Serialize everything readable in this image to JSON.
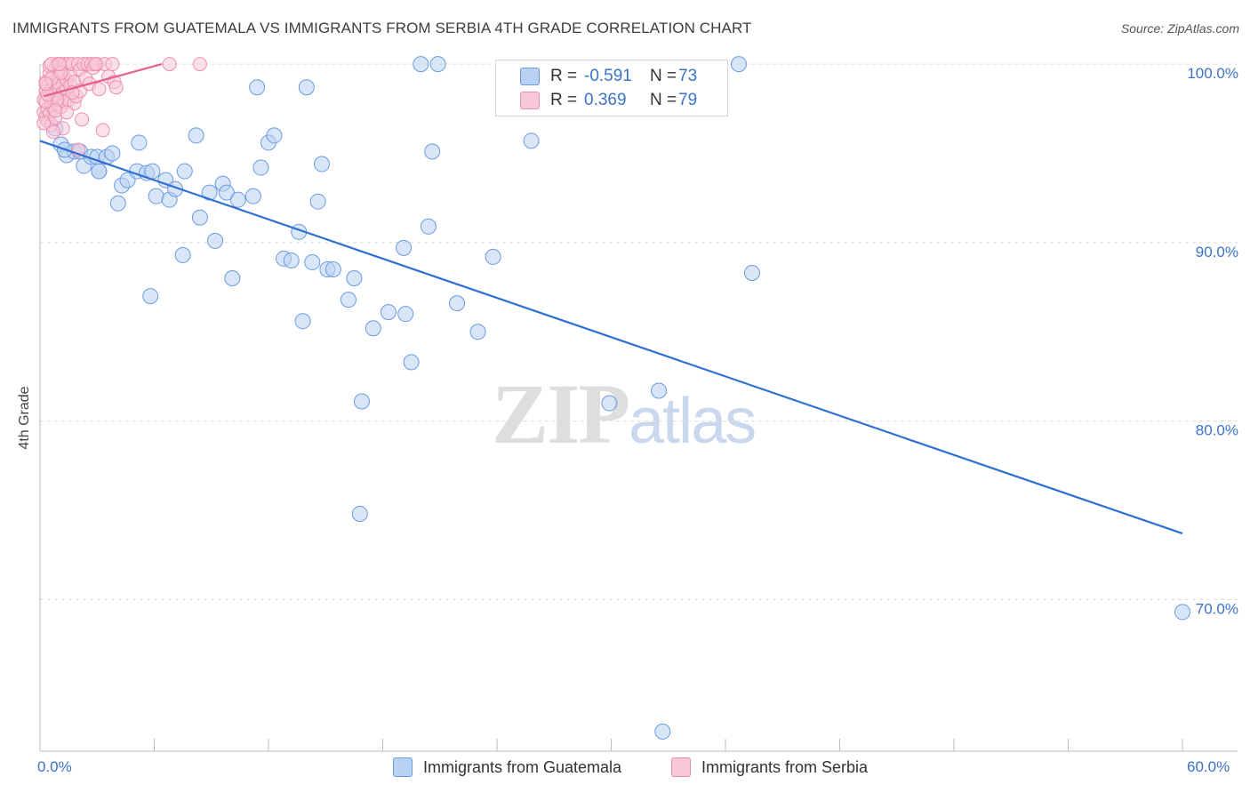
{
  "header": {
    "title": "IMMIGRANTS FROM GUATEMALA VS IMMIGRANTS FROM SERBIA 4TH GRADE CORRELATION CHART",
    "source": "Source: ZipAtlas.com"
  },
  "watermark": {
    "zip": "ZIP",
    "atlas": "atlas"
  },
  "legend_stats": {
    "r_label": "R =",
    "n_label": "N =",
    "guatemala": {
      "r": "-0.591",
      "n": "73"
    },
    "serbia": {
      "r": "0.369",
      "n": "79"
    }
  },
  "chart_data": {
    "type": "scatter",
    "title": "IMMIGRANTS FROM GUATEMALA VS IMMIGRANTS FROM SERBIA 4TH GRADE CORRELATION CHART",
    "xlabel": "",
    "ylabel": "4th Grade",
    "xlim": [
      0,
      60
    ],
    "ylim": [
      61.5,
      101.5
    ],
    "x_tick_labels": [
      "0.0%",
      "60.0%"
    ],
    "y_ticks": [
      70,
      80,
      90,
      100
    ],
    "y_tick_labels": [
      "70.0%",
      "80.0%",
      "90.0%",
      "100.0%"
    ],
    "grid": true,
    "legend": "bottom-center",
    "series": [
      {
        "name": "Immigrants from Guatemala",
        "color": "#6a9be0",
        "fill": "#b9d1f3",
        "trend": {
          "x": [
            0.0,
            60.0
          ],
          "y": [
            95.7,
            73.7
          ],
          "color": "#2f6fd2"
        },
        "points": [
          [
            0.8,
            96.4
          ],
          [
            1.1,
            95.5
          ],
          [
            1.4,
            94.9
          ],
          [
            1.8,
            95.1
          ],
          [
            2.1,
            95.1
          ],
          [
            2.3,
            94.3
          ],
          [
            2.7,
            94.8
          ],
          [
            3.0,
            94.8
          ],
          [
            3.1,
            94.0
          ],
          [
            3.5,
            94.8
          ],
          [
            3.8,
            95.0
          ],
          [
            4.1,
            92.2
          ],
          [
            4.3,
            93.2
          ],
          [
            4.6,
            93.5
          ],
          [
            5.1,
            94.0
          ],
          [
            5.2,
            95.6
          ],
          [
            5.6,
            93.9
          ],
          [
            5.9,
            94.0
          ],
          [
            6.1,
            92.6
          ],
          [
            6.6,
            93.5
          ],
          [
            6.8,
            92.4
          ],
          [
            7.1,
            93.0
          ],
          [
            7.6,
            94.0
          ],
          [
            8.2,
            96.0
          ],
          [
            8.4,
            91.4
          ],
          [
            8.9,
            92.8
          ],
          [
            9.2,
            90.1
          ],
          [
            9.6,
            93.3
          ],
          [
            9.8,
            92.8
          ],
          [
            10.1,
            88.0
          ],
          [
            10.4,
            92.4
          ],
          [
            11.2,
            92.6
          ],
          [
            11.4,
            98.7
          ],
          [
            11.6,
            94.2
          ],
          [
            12.0,
            95.6
          ],
          [
            12.3,
            96.0
          ],
          [
            12.8,
            89.1
          ],
          [
            13.2,
            89.0
          ],
          [
            13.6,
            90.6
          ],
          [
            13.8,
            85.6
          ],
          [
            14.0,
            98.7
          ],
          [
            14.3,
            88.9
          ],
          [
            14.6,
            92.3
          ],
          [
            14.8,
            94.4
          ],
          [
            15.1,
            88.5
          ],
          [
            15.4,
            88.5
          ],
          [
            16.2,
            86.8
          ],
          [
            16.5,
            88.0
          ],
          [
            16.9,
            81.1
          ],
          [
            17.5,
            85.2
          ],
          [
            18.3,
            86.1
          ],
          [
            19.1,
            89.7
          ],
          [
            19.2,
            86.0
          ],
          [
            19.5,
            83.3
          ],
          [
            20.0,
            100.0
          ],
          [
            20.4,
            90.9
          ],
          [
            20.6,
            95.1
          ],
          [
            20.9,
            100.0
          ],
          [
            21.9,
            86.6
          ],
          [
            23.0,
            85.0
          ],
          [
            23.8,
            89.2
          ],
          [
            25.8,
            95.7
          ],
          [
            29.9,
            81.0
          ],
          [
            32.5,
            81.7
          ],
          [
            32.7,
            62.6
          ],
          [
            36.7,
            100.0
          ],
          [
            37.4,
            88.3
          ],
          [
            60.0,
            69.3
          ],
          [
            3.1,
            94.0
          ],
          [
            16.8,
            74.8
          ],
          [
            5.8,
            87.0
          ],
          [
            7.5,
            89.3
          ],
          [
            1.3,
            95.2
          ]
        ]
      },
      {
        "name": "Immigrants from Serbia",
        "color": "#ec8eb0",
        "fill": "#f8c8d8",
        "trend": {
          "x": [
            0.2,
            6.4
          ],
          "y": [
            98.2,
            100.0
          ],
          "color": "#e5608a"
        },
        "points": [
          [
            0.2,
            97.3
          ],
          [
            0.2,
            98.0
          ],
          [
            0.3,
            97.0
          ],
          [
            0.3,
            99.0
          ],
          [
            0.3,
            98.5
          ],
          [
            0.4,
            96.8
          ],
          [
            0.4,
            97.5
          ],
          [
            0.4,
            98.8
          ],
          [
            0.5,
            97.2
          ],
          [
            0.5,
            98.2
          ],
          [
            0.5,
            99.5
          ],
          [
            0.6,
            97.8
          ],
          [
            0.6,
            98.6
          ],
          [
            0.6,
            96.6
          ],
          [
            0.7,
            98.0
          ],
          [
            0.7,
            99.0
          ],
          [
            0.7,
            97.5
          ],
          [
            0.8,
            98.3
          ],
          [
            0.8,
            99.8
          ],
          [
            0.8,
            97.0
          ],
          [
            0.9,
            98.7
          ],
          [
            0.9,
            100.0
          ],
          [
            0.9,
            97.8
          ],
          [
            1.0,
            98.1
          ],
          [
            1.0,
            99.3
          ],
          [
            1.0,
            98.9
          ],
          [
            1.1,
            97.6
          ],
          [
            1.1,
            100.0
          ],
          [
            1.2,
            98.4
          ],
          [
            1.2,
            99.6
          ],
          [
            1.3,
            97.9
          ],
          [
            1.3,
            100.0
          ],
          [
            1.4,
            98.6
          ],
          [
            1.4,
            99.1
          ],
          [
            1.5,
            98.0
          ],
          [
            1.5,
            100.0
          ],
          [
            1.6,
            99.4
          ],
          [
            1.6,
            98.8
          ],
          [
            1.7,
            100.0
          ],
          [
            1.8,
            99.0
          ],
          [
            1.8,
            97.8
          ],
          [
            1.9,
            98.2
          ],
          [
            2.0,
            100.0
          ],
          [
            2.1,
            99.7
          ],
          [
            2.1,
            98.5
          ],
          [
            2.2,
            96.9
          ],
          [
            2.3,
            100.0
          ],
          [
            2.4,
            99.2
          ],
          [
            2.5,
            100.0
          ],
          [
            2.6,
            98.9
          ],
          [
            2.7,
            100.0
          ],
          [
            2.8,
            99.8
          ],
          [
            3.0,
            100.0
          ],
          [
            3.1,
            98.6
          ],
          [
            3.3,
            96.3
          ],
          [
            3.4,
            100.0
          ],
          [
            3.6,
            99.3
          ],
          [
            3.8,
            100.0
          ],
          [
            3.9,
            99.0
          ],
          [
            4.0,
            98.7
          ],
          [
            0.5,
            99.9
          ],
          [
            0.9,
            98.0
          ],
          [
            1.2,
            96.4
          ],
          [
            0.3,
            97.9
          ],
          [
            0.6,
            99.2
          ],
          [
            1.4,
            97.3
          ],
          [
            0.4,
            98.3
          ],
          [
            0.8,
            97.4
          ],
          [
            1.1,
            99.5
          ],
          [
            2.0,
            95.2
          ],
          [
            1.7,
            98.4
          ],
          [
            6.8,
            100.0
          ],
          [
            8.4,
            100.0
          ],
          [
            0.6,
            100.0
          ],
          [
            0.2,
            96.7
          ],
          [
            0.7,
            96.2
          ],
          [
            1.0,
            100.0
          ],
          [
            2.9,
            100.0
          ],
          [
            0.3,
            98.9
          ]
        ]
      }
    ]
  },
  "legend_bottom": {
    "guatemala_label": "Immigrants from Guatemala",
    "serbia_label": "Immigrants from Serbia"
  }
}
